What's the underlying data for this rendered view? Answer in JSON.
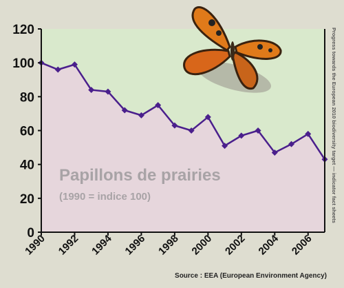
{
  "chart_data": {
    "type": "area-line",
    "title": "Papillons de prairies",
    "subtitle": "(1990 = indice 100)",
    "source": "Source : EEA (European Environment Agency)",
    "side_note": "Progress towards the European 2010 biodiversity target — indicator fact sheets",
    "x": [
      1990,
      1991,
      1992,
      1993,
      1994,
      1995,
      1996,
      1997,
      1998,
      1999,
      2000,
      2001,
      2002,
      2003,
      2004,
      2005,
      2006,
      2007
    ],
    "values": [
      100,
      96,
      99,
      84,
      83,
      72,
      69,
      75,
      63,
      60,
      68,
      51,
      57,
      60,
      47,
      52,
      58,
      43
    ],
    "color": "#4a1f8c",
    "area_color": "#e6d6dc",
    "plot_background": "#d9e9cc",
    "xlim": [
      1990,
      2007
    ],
    "xticks": [
      1990,
      1992,
      1994,
      1996,
      1998,
      2000,
      2002,
      2004,
      2006
    ],
    "ylim": [
      0,
      120
    ],
    "yticks": [
      0,
      20,
      40,
      60,
      80,
      100,
      120
    ]
  }
}
